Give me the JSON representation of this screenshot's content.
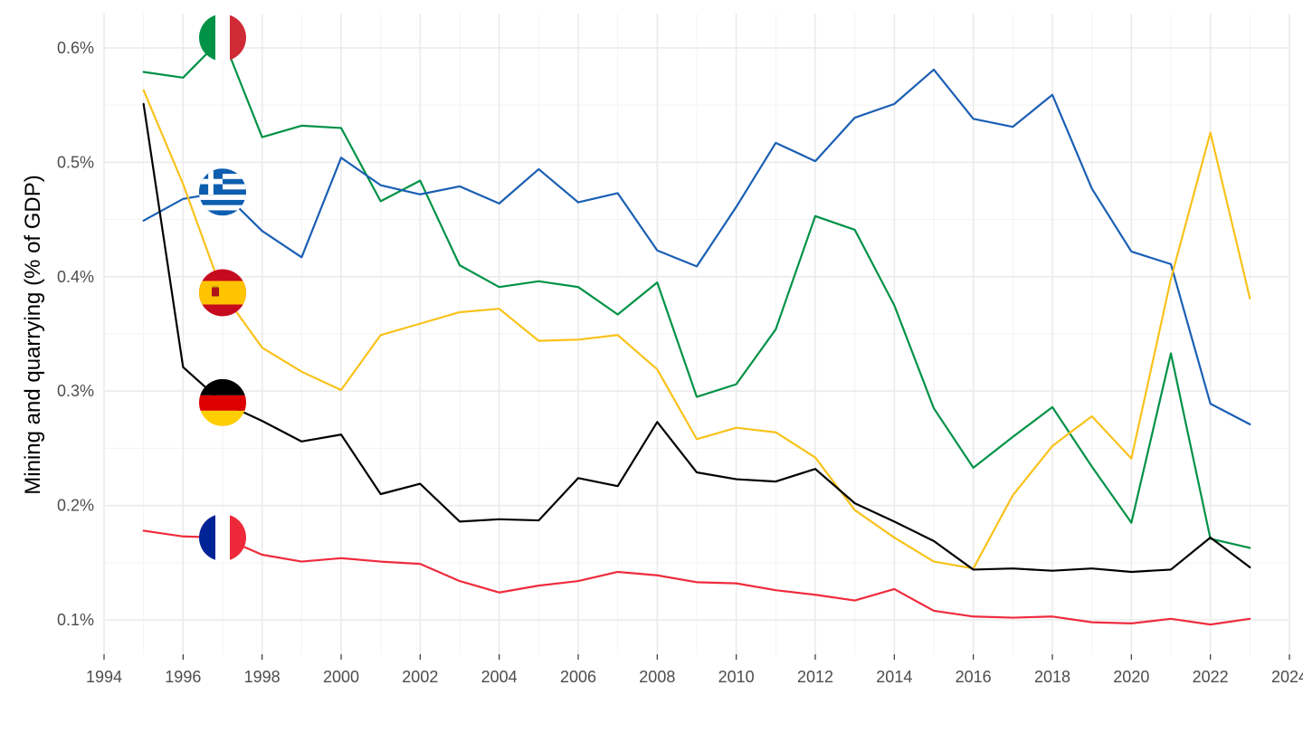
{
  "chart_data": {
    "type": "line",
    "title": "",
    "xlabel": "",
    "ylabel": "Mining and quarrying (% of GDP)",
    "xlim": [
      1994,
      2024
    ],
    "ylim": [
      0.07,
      0.63
    ],
    "x_ticks": [
      1994,
      1996,
      1998,
      2000,
      2002,
      2004,
      2006,
      2008,
      2010,
      2012,
      2014,
      2016,
      2018,
      2020,
      2022,
      2024
    ],
    "x_tick_labels": [
      "1994",
      "1996",
      "1998",
      "2000",
      "2002",
      "2004",
      "2006",
      "2008",
      "2010",
      "2012",
      "2014",
      "2016",
      "2018",
      "2020",
      "2022",
      "2024"
    ],
    "y_ticks": [
      0.1,
      0.2,
      0.3,
      0.4,
      0.5,
      0.6
    ],
    "y_tick_labels": [
      "0.1%",
      "0.2%",
      "0.3%",
      "0.4%",
      "0.5%",
      "0.6%"
    ],
    "grid": true,
    "legend": "flag markers at 1997",
    "x": [
      1995,
      1996,
      1997,
      1998,
      1999,
      2000,
      2001,
      2002,
      2003,
      2004,
      2005,
      2006,
      2007,
      2008,
      2009,
      2010,
      2011,
      2012,
      2013,
      2014,
      2015,
      2016,
      2017,
      2018,
      2019,
      2020,
      2021,
      2022,
      2023
    ],
    "series": [
      {
        "country": "Italy",
        "flag": "italy-flag-icon",
        "color": "#009246",
        "values": [
          0.579,
          0.574,
          0.609,
          0.522,
          0.532,
          0.53,
          0.466,
          0.484,
          0.41,
          0.391,
          0.396,
          0.391,
          0.367,
          0.395,
          0.295,
          0.306,
          0.354,
          0.453,
          0.441,
          0.375,
          0.285,
          0.233,
          0.26,
          0.286,
          0.234,
          0.185,
          0.333,
          0.171,
          0.163
        ]
      },
      {
        "country": "Greece",
        "flag": "greece-flag-icon",
        "color": "#1a5fb4",
        "values": [
          0.449,
          0.468,
          0.474,
          0.44,
          0.417,
          0.504,
          0.48,
          0.472,
          0.479,
          0.464,
          0.494,
          0.465,
          0.473,
          0.423,
          0.409,
          0.461,
          0.517,
          0.501,
          0.539,
          0.551,
          0.581,
          0.538,
          0.531,
          0.559,
          0.477,
          0.422,
          0.411,
          0.289,
          0.271
        ]
      },
      {
        "country": "Spain",
        "flag": "spain-flag-icon",
        "color": "#f9c21b",
        "values": [
          0.563,
          0.481,
          0.386,
          0.338,
          0.317,
          0.301,
          0.349,
          0.359,
          0.369,
          0.372,
          0.344,
          0.345,
          0.349,
          0.319,
          0.258,
          0.268,
          0.264,
          0.242,
          0.196,
          0.172,
          0.151,
          0.145,
          0.209,
          0.252,
          0.278,
          0.241,
          0.398,
          0.526,
          0.381
        ]
      },
      {
        "country": "Germany",
        "flag": "germany-flag-icon",
        "color": "#000000",
        "values": [
          0.551,
          0.321,
          0.29,
          0.274,
          0.256,
          0.262,
          0.21,
          0.219,
          0.186,
          0.188,
          0.187,
          0.224,
          0.217,
          0.273,
          0.229,
          0.223,
          0.221,
          0.232,
          0.202,
          0.186,
          0.169,
          0.144,
          0.145,
          0.143,
          0.145,
          0.142,
          0.144,
          0.172,
          0.146
        ]
      },
      {
        "country": "France",
        "flag": "france-flag-icon",
        "color": "#ef2b3d",
        "values": [
          0.178,
          0.173,
          0.172,
          0.157,
          0.151,
          0.154,
          0.151,
          0.149,
          0.134,
          0.124,
          0.13,
          0.134,
          0.142,
          0.139,
          0.133,
          0.132,
          0.126,
          0.122,
          0.117,
          0.127,
          0.108,
          0.103,
          0.102,
          0.103,
          0.098,
          0.097,
          0.101,
          0.096,
          0.101
        ]
      }
    ]
  }
}
